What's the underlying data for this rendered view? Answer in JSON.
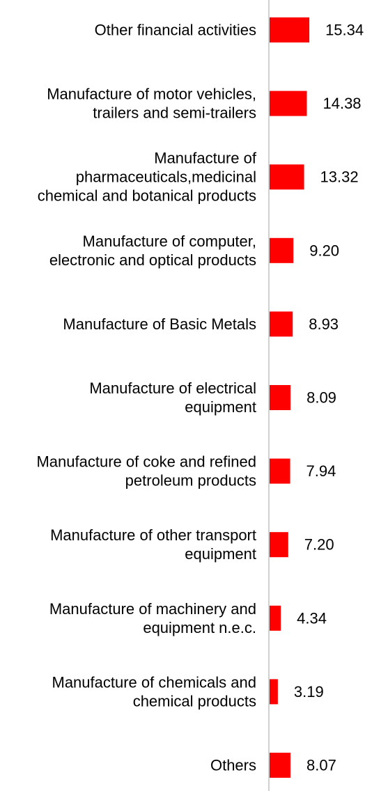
{
  "chart_data": {
    "type": "bar",
    "orientation": "horizontal",
    "categories": [
      [
        "Other financial activities"
      ],
      [
        "Manufacture of motor vehicles,",
        "trailers and semi-trailers"
      ],
      [
        "Manufacture of",
        "pharmaceuticals,medicinal",
        "chemical and botanical products"
      ],
      [
        "Manufacture of computer,",
        "electronic and optical products"
      ],
      [
        "Manufacture of Basic Metals"
      ],
      [
        "Manufacture of electrical",
        "equipment"
      ],
      [
        "Manufacture of coke and refined",
        "petroleum products"
      ],
      [
        "Manufacture of other transport",
        "equipment"
      ],
      [
        "Manufacture of machinery and",
        "equipment n.e.c."
      ],
      [
        "Manufacture of chemicals and",
        "chemical products"
      ],
      [
        "Others"
      ]
    ],
    "values": [
      15.34,
      14.38,
      13.32,
      9.2,
      8.93,
      8.09,
      7.94,
      7.2,
      4.34,
      3.19,
      8.07
    ],
    "value_labels": [
      "15.34",
      "14.38",
      "13.32",
      "9.20",
      "8.93",
      "8.09",
      "7.94",
      "7.20",
      "4.34",
      "3.19",
      "8.07"
    ],
    "bar_color": "#ff0000",
    "axis_color": "#d0d0d0",
    "grid": false,
    "legend": "none"
  }
}
